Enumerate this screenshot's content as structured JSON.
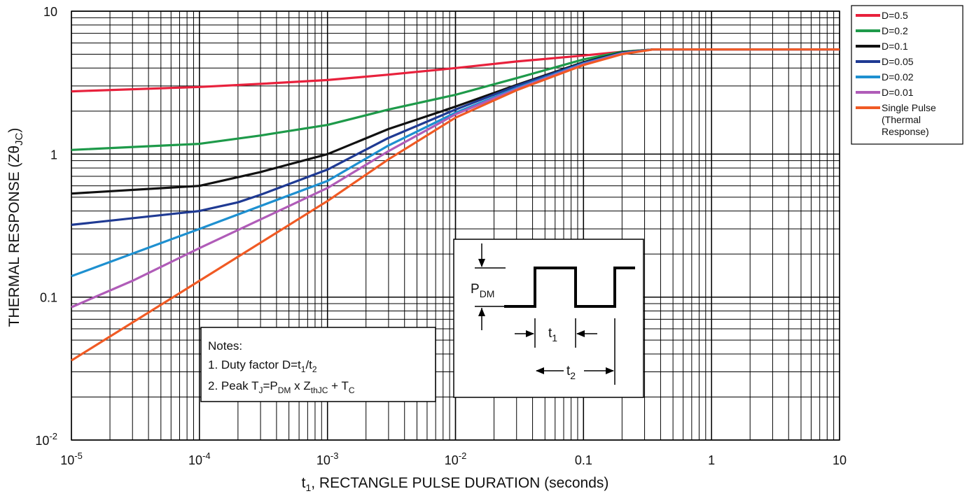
{
  "chart_data": {
    "type": "line",
    "xlabel": {
      "main": "t",
      "sub": "1",
      "rest": ", RECTANGLE PULSE DURATION (seconds)"
    },
    "ylabel": {
      "main": "THERMAL RESPONSE (Z",
      "theta": "θ",
      "sub": "JC",
      "close": ")"
    },
    "x_scale": "log",
    "y_scale": "log",
    "xlim": [
      1e-05,
      10
    ],
    "ylim": [
      0.01,
      10
    ],
    "grid": true,
    "x_ticks": [
      {
        "value": 1e-05,
        "base": "10",
        "exp": "-5"
      },
      {
        "value": 0.0001,
        "base": "10",
        "exp": "-4"
      },
      {
        "value": 0.001,
        "base": "10",
        "exp": "-3"
      },
      {
        "value": 0.01,
        "base": "10",
        "exp": "-2"
      },
      {
        "value": 0.1,
        "base": "0.1",
        "exp": ""
      },
      {
        "value": 1,
        "base": "1",
        "exp": ""
      },
      {
        "value": 10,
        "base": "10",
        "exp": ""
      }
    ],
    "y_ticks": [
      {
        "value": 10,
        "base": "10",
        "exp": ""
      },
      {
        "value": 1,
        "base": "1",
        "exp": ""
      },
      {
        "value": 0.1,
        "base": "0.1",
        "exp": ""
      },
      {
        "value": 0.01,
        "base": "10",
        "exp": "-2"
      }
    ],
    "legend": {
      "position": "right, outside plot, top"
    },
    "series": [
      {
        "name": "D=0.5",
        "color": "#e8213c",
        "x": [
          1e-05,
          0.0001,
          0.0003,
          0.001,
          0.003,
          0.01,
          0.03,
          0.1,
          0.2,
          0.35,
          1,
          10
        ],
        "y": [
          2.75,
          2.95,
          3.1,
          3.3,
          3.6,
          4.0,
          4.45,
          4.9,
          5.2,
          5.4,
          5.4,
          5.4
        ]
      },
      {
        "name": "D=0.2",
        "color": "#1e9a4a",
        "x": [
          1e-05,
          0.0001,
          0.0003,
          0.001,
          0.003,
          0.01,
          0.03,
          0.1,
          0.2,
          0.35,
          1,
          10
        ],
        "y": [
          1.07,
          1.18,
          1.35,
          1.6,
          2.05,
          2.6,
          3.4,
          4.6,
          5.2,
          5.4,
          5.4,
          5.4
        ]
      },
      {
        "name": "D=0.1",
        "color": "#111111",
        "x": [
          1e-05,
          0.0001,
          0.0003,
          0.001,
          0.003,
          0.01,
          0.03,
          0.1,
          0.2,
          0.35,
          1,
          10
        ],
        "y": [
          0.53,
          0.6,
          0.75,
          1.0,
          1.5,
          2.15,
          3.05,
          4.4,
          5.15,
          5.4,
          5.4,
          5.4
        ]
      },
      {
        "name": "D=0.05",
        "color": "#1f3a93",
        "x": [
          1e-05,
          0.0001,
          0.0002,
          0.0003,
          0.001,
          0.003,
          0.01,
          0.03,
          0.1,
          0.2,
          0.35,
          1,
          10
        ],
        "y": [
          0.32,
          0.4,
          0.46,
          0.52,
          0.78,
          1.3,
          2.05,
          3.0,
          4.35,
          5.1,
          5.4,
          5.4,
          5.4
        ]
      },
      {
        "name": "D=0.02",
        "color": "#1e90d0",
        "x": [
          1e-05,
          0.0001,
          0.001,
          0.003,
          0.01,
          0.03,
          0.1,
          0.2,
          0.35,
          1,
          10
        ],
        "y": [
          0.14,
          0.3,
          0.65,
          1.15,
          1.95,
          2.9,
          4.3,
          5.1,
          5.4,
          5.4,
          5.4
        ]
      },
      {
        "name": "D=0.01",
        "color": "#b05cb8",
        "x": [
          1e-05,
          3e-05,
          0.0001,
          0.001,
          0.003,
          0.01,
          0.03,
          0.1,
          0.2,
          0.35,
          1,
          10
        ],
        "y": [
          0.085,
          0.13,
          0.22,
          0.58,
          1.05,
          1.9,
          2.85,
          4.25,
          5.05,
          5.4,
          5.4,
          5.4
        ]
      },
      {
        "name": [
          "Single Pulse",
          "(Thermal",
          "Response)"
        ],
        "color": "#f05a24",
        "x": [
          1e-05,
          0.0001,
          0.001,
          0.003,
          0.01,
          0.03,
          0.1,
          0.2,
          0.35,
          1,
          10
        ],
        "y": [
          0.036,
          0.13,
          0.47,
          0.92,
          1.8,
          2.8,
          4.2,
          5.0,
          5.4,
          5.4,
          5.4
        ]
      }
    ],
    "notes": {
      "heading": "Notes:",
      "line1": {
        "prefix": "1.  Duty factor D=t",
        "s1": "1",
        "mid": "/t",
        "s2": "2"
      },
      "line2": {
        "prefix": "2.  Peak T",
        "s1": "J",
        "mid1": "=P",
        "s2": "DM",
        "mid2": " x Z",
        "s3": "thJC",
        "mid3": " + T",
        "s4": "C"
      }
    },
    "pulse_diagram": {
      "pdm": {
        "main": "P",
        "sub": "DM"
      },
      "t1": {
        "main": "t",
        "sub": "1"
      },
      "t2": {
        "main": "t",
        "sub": "2"
      }
    }
  }
}
